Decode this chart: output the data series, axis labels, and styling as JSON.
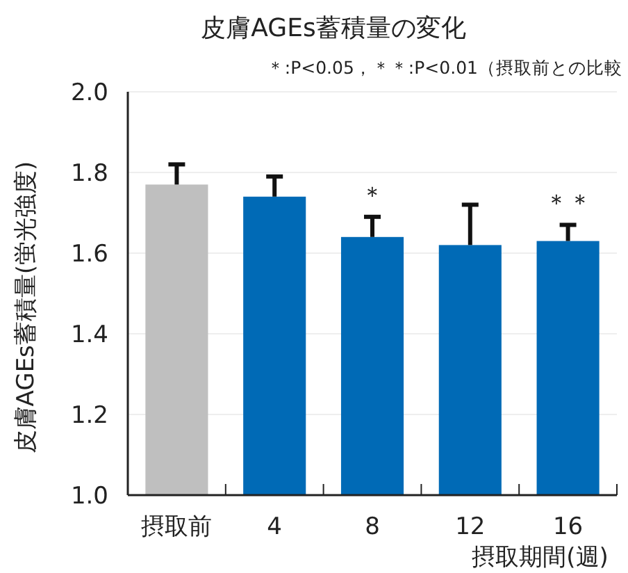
{
  "chart_data": {
    "type": "bar",
    "title": "皮膚AGEs蓄積量の変化",
    "subtitle": "＊:P<0.05，＊＊:P<0.01（摂取前との比較",
    "xlabel": "摂取期間(週)",
    "ylabel": "皮膚AGEs蓄積量(蛍光強度)",
    "categories": [
      "摂取前",
      "4",
      "8",
      "12",
      "16"
    ],
    "values": [
      1.77,
      1.74,
      1.64,
      1.62,
      1.63
    ],
    "colors": [
      "#bfbfbf",
      "#006ab6",
      "#006ab6",
      "#006ab6",
      "#006ab6"
    ],
    "errors": [
      [
        1.77,
        1.82
      ],
      [
        1.74,
        1.79
      ],
      [
        1.64,
        1.69
      ],
      [
        1.62,
        1.72
      ],
      [
        1.63,
        1.67
      ]
    ],
    "annotations": [
      {
        "text": "＊",
        "x": "8",
        "y": 1.69
      },
      {
        "text": "＊＊",
        "x": "16",
        "y": 1.67
      }
    ],
    "ylim": [
      1.0,
      2.0
    ],
    "yticks": [
      {
        "value": 1.0,
        "label": "1.0"
      },
      {
        "value": 1.2,
        "label": "1.2"
      },
      {
        "value": 1.4,
        "label": "1.4"
      },
      {
        "value": 1.6,
        "label": "1.6"
      },
      {
        "value": 1.8,
        "label": "1.8"
      },
      {
        "value": 2.0,
        "label": "2.0"
      }
    ],
    "grid": "y"
  }
}
